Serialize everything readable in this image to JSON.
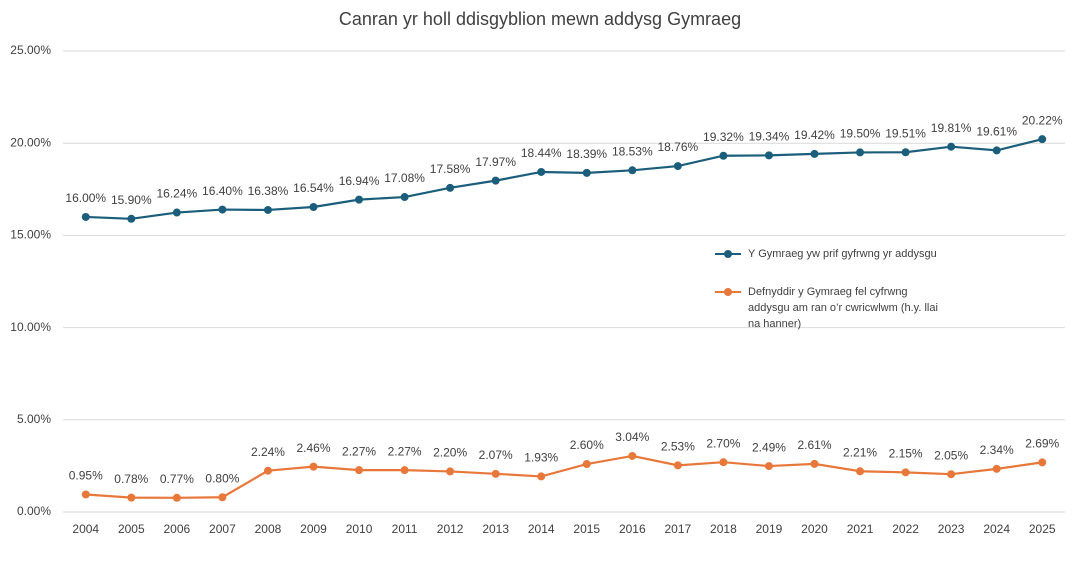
{
  "chart_data": {
    "type": "line",
    "title": "Canran yr holl ddisgyblion mewn addysg Gymraeg",
    "categories": [
      "2004",
      "2005",
      "2006",
      "2007",
      "2008",
      "2009",
      "2010",
      "2011",
      "2012",
      "2013",
      "2014",
      "2015",
      "2016",
      "2017",
      "2018",
      "2019",
      "2020",
      "2021",
      "2022",
      "2023",
      "2024",
      "2025"
    ],
    "series": [
      {
        "name": "Y Gymraeg yw prif gyfrwng yr addysgu",
        "color": "#1b5e7b",
        "values": [
          16.0,
          15.9,
          16.24,
          16.4,
          16.38,
          16.54,
          16.94,
          17.08,
          17.58,
          17.97,
          18.44,
          18.39,
          18.53,
          18.76,
          19.32,
          19.34,
          19.42,
          19.5,
          19.51,
          19.81,
          19.61,
          20.22
        ],
        "value_labels": [
          "16.00%",
          "15.90%",
          "16.24%",
          "16.40%",
          "16.38%",
          "16.54%",
          "16.94%",
          "17.08%",
          "17.58%",
          "17.97%",
          "18.44%",
          "18.39%",
          "18.53%",
          "18.76%",
          "19.32%",
          "19.34%",
          "19.42%",
          "19.50%",
          "19.51%",
          "19.81%",
          "19.61%",
          "20.22%"
        ]
      },
      {
        "name": "Defnyddir y Gymraeg fel cyfrwng addysgu am ran o’r cwricwlwm (h.y. llai na hanner)",
        "color": "#e8773a",
        "values": [
          0.95,
          0.78,
          0.77,
          0.8,
          2.24,
          2.46,
          2.27,
          2.27,
          2.2,
          2.07,
          1.93,
          2.6,
          3.04,
          2.53,
          2.7,
          2.49,
          2.61,
          2.21,
          2.15,
          2.05,
          2.34,
          2.69
        ],
        "value_labels": [
          "0.95%",
          "0.78%",
          "0.77%",
          "0.80%",
          "2.24%",
          "2.46%",
          "2.27%",
          "2.27%",
          "2.20%",
          "2.07%",
          "1.93%",
          "2.60%",
          "3.04%",
          "2.53%",
          "2.70%",
          "2.49%",
          "2.61%",
          "2.21%",
          "2.15%",
          "2.05%",
          "2.34%",
          "2.69%"
        ]
      }
    ],
    "ylim": [
      0,
      25
    ],
    "yticks": [
      {
        "value": 0,
        "label": "0.00%"
      },
      {
        "value": 5,
        "label": "5.00%"
      },
      {
        "value": 10,
        "label": "10.00%"
      },
      {
        "value": 15,
        "label": "15.00%"
      },
      {
        "value": 20,
        "label": "20.00%"
      },
      {
        "value": 25,
        "label": "25.00%"
      }
    ],
    "grid": true
  }
}
